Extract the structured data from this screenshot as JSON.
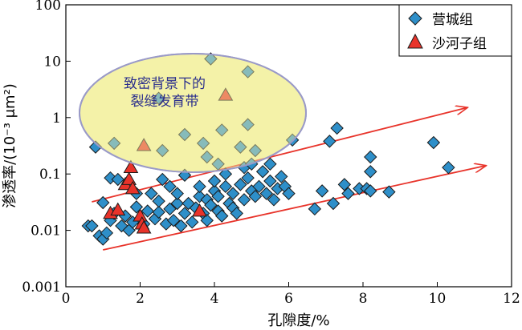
{
  "chart_data": {
    "type": "scatter",
    "xlabel": "孔隙度/%",
    "ylabel": "渗透率/(10⁻³ μm²)",
    "xlim": [
      0,
      12
    ],
    "ylim": [
      0.001,
      100
    ],
    "yscale": "log",
    "x_ticks": [
      "0",
      "2",
      "4",
      "6",
      "8",
      "10",
      "12"
    ],
    "y_ticks": [
      "0.001",
      "0.01",
      "0.1",
      "1",
      "10",
      "100"
    ],
    "legend_position": "top-right",
    "annotation": {
      "lines": [
        "致密背景下的",
        "裂缝发育带"
      ],
      "ellipse_fill": "#f5f2a8",
      "ellipse_stroke": "#9a9ac8"
    },
    "trend_arrows": [
      {
        "x1": 0.7,
        "y1": 0.032,
        "x2": 10.8,
        "y2": 1.5
      },
      {
        "x1": 1.0,
        "y1": 0.0045,
        "x2": 11.3,
        "y2": 0.14
      }
    ],
    "series": [
      {
        "name": "营城组",
        "marker": "diamond",
        "color": "#2e8fc9",
        "points": [
          [
            0.6,
            0.012
          ],
          [
            0.7,
            0.012
          ],
          [
            0.9,
            0.008
          ],
          [
            1.0,
            0.007
          ],
          [
            1.1,
            0.009
          ],
          [
            1.0,
            0.031
          ],
          [
            1.2,
            0.015
          ],
          [
            1.3,
            0.02
          ],
          [
            1.2,
            0.085
          ],
          [
            1.4,
            0.08
          ],
          [
            1.5,
            0.012
          ],
          [
            1.6,
            0.018
          ],
          [
            1.7,
            0.01
          ],
          [
            1.8,
            0.014
          ],
          [
            1.9,
            0.026
          ],
          [
            1.9,
            0.045
          ],
          [
            2.1,
            0.013
          ],
          [
            2.2,
            0.022
          ],
          [
            2.3,
            0.045
          ],
          [
            2.4,
            0.016
          ],
          [
            2.5,
            0.021
          ],
          [
            2.5,
            0.033
          ],
          [
            2.6,
            0.08
          ],
          [
            2.7,
            0.013
          ],
          [
            2.8,
            0.024
          ],
          [
            2.8,
            0.06
          ],
          [
            2.9,
            0.015
          ],
          [
            3.0,
            0.03
          ],
          [
            3.0,
            0.045
          ],
          [
            3.1,
            0.012
          ],
          [
            3.2,
            0.02
          ],
          [
            3.2,
            0.095
          ],
          [
            3.3,
            0.03
          ],
          [
            3.4,
            0.014
          ],
          [
            3.5,
            0.025
          ],
          [
            3.6,
            0.04
          ],
          [
            3.6,
            0.06
          ],
          [
            3.7,
            0.02
          ],
          [
            3.8,
            0.015
          ],
          [
            3.8,
            0.035
          ],
          [
            3.9,
            0.028
          ],
          [
            4.0,
            0.05
          ],
          [
            4.0,
            0.075
          ],
          [
            4.1,
            0.022
          ],
          [
            4.1,
            0.04
          ],
          [
            4.2,
            0.018
          ],
          [
            4.3,
            0.06
          ],
          [
            4.3,
            0.1
          ],
          [
            4.4,
            0.03
          ],
          [
            4.5,
            0.025
          ],
          [
            4.5,
            0.045
          ],
          [
            4.6,
            0.02
          ],
          [
            4.7,
            0.065
          ],
          [
            4.8,
            0.13
          ],
          [
            4.8,
            0.035
          ],
          [
            4.9,
            0.085
          ],
          [
            5.0,
            0.05
          ],
          [
            5.0,
            0.15
          ],
          [
            5.1,
            0.04
          ],
          [
            5.2,
            0.06
          ],
          [
            5.3,
            0.11
          ],
          [
            5.4,
            0.045
          ],
          [
            5.5,
            0.075
          ],
          [
            5.5,
            0.15
          ],
          [
            5.6,
            0.035
          ],
          [
            5.7,
            0.055
          ],
          [
            5.8,
            0.09
          ],
          [
            5.9,
            0.06
          ],
          [
            6.0,
            0.045
          ],
          [
            6.1,
            0.4
          ],
          [
            6.7,
            0.024
          ],
          [
            6.9,
            0.05
          ],
          [
            7.1,
            0.38
          ],
          [
            7.2,
            0.03
          ],
          [
            7.3,
            0.65
          ],
          [
            7.5,
            0.065
          ],
          [
            7.6,
            0.045
          ],
          [
            7.9,
            0.055
          ],
          [
            8.1,
            0.055
          ],
          [
            8.2,
            0.11
          ],
          [
            8.2,
            0.05
          ],
          [
            8.2,
            0.2
          ],
          [
            8.7,
            0.048
          ],
          [
            9.9,
            0.36
          ],
          [
            10.3,
            0.13
          ],
          [
            0.8,
            0.3
          ],
          [
            1.3,
            0.35
          ],
          [
            2.6,
            0.26
          ],
          [
            3.2,
            0.5
          ],
          [
            3.7,
            0.35
          ],
          [
            4.1,
            0.15
          ],
          [
            4.7,
            0.3
          ],
          [
            4.9,
            0.75
          ],
          [
            5.1,
            0.26
          ],
          [
            3.9,
            11.0
          ],
          [
            4.9,
            6.5
          ],
          [
            2.5,
            2.2
          ],
          [
            3.8,
            0.2
          ],
          [
            4.2,
            0.6
          ]
        ]
      },
      {
        "name": "沙河子组",
        "marker": "triangle",
        "color": "#e8332a",
        "points": [
          [
            1.2,
            0.02
          ],
          [
            1.4,
            0.023
          ],
          [
            1.6,
            0.065
          ],
          [
            1.7,
            0.08
          ],
          [
            1.75,
            0.13
          ],
          [
            1.8,
            0.055
          ],
          [
            2.0,
            0.018
          ],
          [
            2.05,
            0.013
          ],
          [
            2.1,
            0.011
          ],
          [
            3.6,
            0.022
          ],
          [
            2.1,
            0.32
          ],
          [
            4.3,
            2.5
          ]
        ]
      }
    ]
  }
}
